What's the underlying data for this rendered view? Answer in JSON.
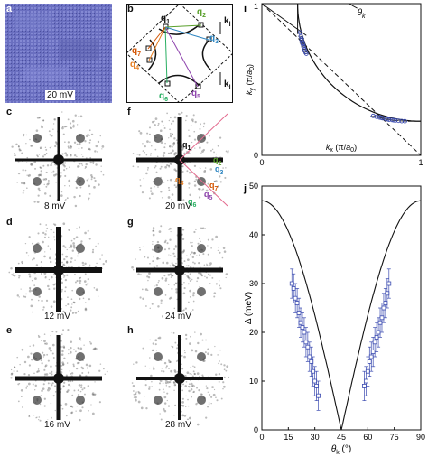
{
  "panels": {
    "a": {
      "label": "a",
      "energy": "20 mV"
    },
    "b": {
      "label": "b",
      "q_labels": [
        {
          "id": "q1",
          "base": "q",
          "sub": "1",
          "color": "#111111"
        },
        {
          "id": "q2",
          "base": "q",
          "sub": "2",
          "color": "#5aa02c"
        },
        {
          "id": "q3",
          "base": "q",
          "sub": "3",
          "color": "#2e86c1"
        },
        {
          "id": "q4",
          "base": "q",
          "sub": "4",
          "color": "#e67e22"
        },
        {
          "id": "q5",
          "base": "q",
          "sub": "5",
          "color": "#8e44ad"
        },
        {
          "id": "q6",
          "base": "q",
          "sub": "6",
          "color": "#27ae60"
        },
        {
          "id": "q7",
          "base": "q",
          "sub": "7",
          "color": "#d35400"
        }
      ],
      "k_labels": [
        {
          "id": "k_upper",
          "base": "k",
          "sub": "l"
        },
        {
          "id": "k_lower",
          "base": "k",
          "sub": "l"
        }
      ]
    },
    "c": {
      "label": "c",
      "energy": "8 mV"
    },
    "d": {
      "label": "d",
      "energy": "12 mV"
    },
    "e": {
      "label": "e",
      "energy": "16 mV"
    },
    "f": {
      "label": "f",
      "energy": "20 mV",
      "q_labels": [
        {
          "id": "q1",
          "base": "q",
          "sub": "1",
          "color": "#111111"
        },
        {
          "id": "q2",
          "base": "q",
          "sub": "2",
          "color": "#5aa02c"
        },
        {
          "id": "q3",
          "base": "q",
          "sub": "3",
          "color": "#2e86c1"
        },
        {
          "id": "q4",
          "base": "q",
          "sub": "4",
          "color": "#e67e22"
        },
        {
          "id": "q5",
          "base": "q",
          "sub": "5",
          "color": "#8e44ad"
        },
        {
          "id": "q6",
          "base": "q",
          "sub": "6",
          "color": "#27ae60"
        },
        {
          "id": "q7",
          "base": "q",
          "sub": "7",
          "color": "#d35400"
        }
      ]
    },
    "g": {
      "label": "g",
      "energy": "24 mV"
    },
    "h": {
      "label": "h",
      "energy": "28 mV"
    }
  },
  "chart_data": [
    {
      "id": "i",
      "type": "scatter",
      "panel_label": "i",
      "xlabel_base": "k",
      "xlabel_sub": "x",
      "xlabel_unit_pre": " (π/",
      "xlabel_unit_a": "a",
      "xlabel_unit_sub": "0",
      "xlabel_unit_post": ")",
      "ylabel_base": "k",
      "ylabel_sub": "y",
      "ylabel_unit_pre": " (π/",
      "ylabel_unit_a": "a",
      "ylabel_unit_sub": "0",
      "ylabel_unit_post": ")",
      "xlim": [
        0,
        1
      ],
      "ylim": [
        0,
        1
      ],
      "xticks": [
        "0",
        "1"
      ],
      "yticks": [
        "0",
        "1"
      ],
      "angle_label_base": "θ",
      "angle_label_sub": "k",
      "points": [
        [
          0.24,
          0.81
        ],
        [
          0.245,
          0.785
        ],
        [
          0.25,
          0.77
        ],
        [
          0.255,
          0.75
        ],
        [
          0.26,
          0.73
        ],
        [
          0.265,
          0.71
        ],
        [
          0.27,
          0.69
        ],
        [
          0.28,
          0.67
        ],
        [
          0.255,
          0.74
        ],
        [
          0.262,
          0.72
        ],
        [
          0.268,
          0.7
        ],
        [
          0.275,
          0.68
        ],
        [
          0.25,
          0.76
        ],
        [
          0.258,
          0.735
        ],
        [
          0.7,
          0.26
        ],
        [
          0.72,
          0.255
        ],
        [
          0.74,
          0.25
        ],
        [
          0.76,
          0.245
        ],
        [
          0.78,
          0.24
        ],
        [
          0.8,
          0.235
        ],
        [
          0.82,
          0.233
        ],
        [
          0.84,
          0.23
        ],
        [
          0.86,
          0.228
        ],
        [
          0.88,
          0.226
        ],
        [
          0.9,
          0.225
        ],
        [
          0.75,
          0.248
        ],
        [
          0.79,
          0.238
        ],
        [
          0.83,
          0.231
        ]
      ]
    },
    {
      "id": "j",
      "type": "scatter",
      "panel_label": "j",
      "xlabel_base": "θ",
      "xlabel_sub": "k",
      "xlabel_unit": " (°)",
      "ylabel": "Δ (meV)",
      "xlim": [
        0,
        90
      ],
      "ylim": [
        0,
        50
      ],
      "xticks": [
        0,
        15,
        30,
        45,
        60,
        75,
        90
      ],
      "yticks": [
        0,
        10,
        20,
        30,
        40,
        50
      ],
      "curve_gap_max": 47,
      "series": [
        {
          "x": [
            17,
            18,
            19,
            20,
            21,
            22,
            23,
            24,
            25,
            26,
            27,
            28,
            29,
            30,
            31,
            32
          ],
          "y": [
            30,
            29,
            27,
            26,
            24,
            22,
            21,
            20,
            18,
            17,
            15,
            14,
            12,
            10,
            9,
            7
          ],
          "err": [
            3,
            3,
            3,
            3,
            3,
            3,
            3,
            3,
            3,
            3,
            3,
            3,
            3,
            3,
            3,
            3
          ]
        },
        {
          "x": [
            58,
            59,
            60,
            61,
            62,
            63,
            64,
            65,
            66,
            67,
            68,
            69,
            70,
            71,
            72
          ],
          "y": [
            9,
            10,
            12,
            14,
            15,
            16,
            18,
            19,
            20,
            22,
            23,
            25,
            26,
            28,
            30
          ],
          "err": [
            3,
            3,
            3,
            3,
            3,
            3,
            3,
            3,
            3,
            3,
            3,
            3,
            3,
            3,
            3
          ]
        }
      ]
    }
  ]
}
